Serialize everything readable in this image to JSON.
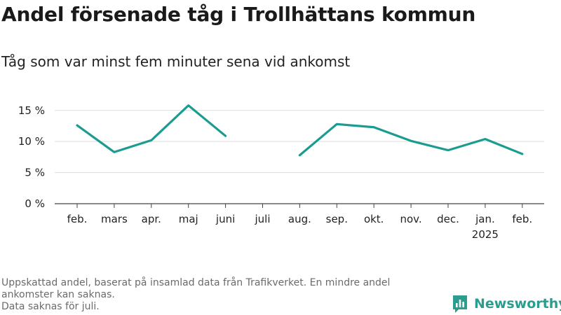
{
  "title": "Andel försenade tåg i Trollhättans kommun",
  "subtitle": "Tåg som var minst fem minuter sena vid ankomst",
  "footnote_lines": [
    "Uppskattad andel, baserat på insamlad data från Trafikverket. En mindre andel ankomster kan saknas.",
    "Data saknas för juli."
  ],
  "brand": {
    "name": "Newsworthy",
    "color": "#2a9d8f"
  },
  "chart_data": {
    "type": "line",
    "categories": [
      "feb.",
      "mars",
      "apr.",
      "maj",
      "juni",
      "juli",
      "aug.",
      "sep.",
      "okt.",
      "nov.",
      "dec.",
      "jan.",
      "feb."
    ],
    "category_sublabels": [
      "",
      "",
      "",
      "",
      "",
      "",
      "",
      "",
      "",
      "",
      "",
      "2025",
      ""
    ],
    "series": [
      {
        "color": "#1a9c91",
        "values": [
          12.6,
          8.3,
          10.2,
          15.8,
          10.9,
          null,
          7.8,
          12.8,
          12.3,
          10.1,
          8.6,
          10.4,
          8.0
        ]
      }
    ],
    "yticks": [
      0,
      5,
      10,
      15
    ],
    "ytick_labels": [
      "0 %",
      "5 %",
      "10 %",
      "15 %"
    ],
    "ylim": [
      0,
      17
    ],
    "grid": true,
    "xlabel": "",
    "ylabel": ""
  }
}
